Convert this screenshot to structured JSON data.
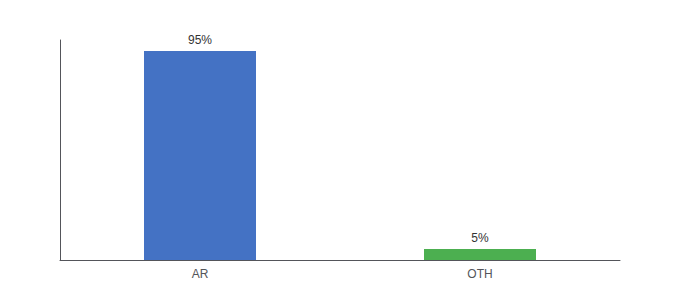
{
  "chart_data": {
    "type": "bar",
    "categories": [
      "AR",
      "OTH"
    ],
    "values": [
      95,
      5
    ],
    "value_labels": [
      "95%",
      "5%"
    ],
    "colors": [
      "#4472c4",
      "#4caf50"
    ],
    "ylim": [
      0,
      100
    ],
    "tick_labels": "x",
    "grid": false,
    "data_labels": true
  }
}
